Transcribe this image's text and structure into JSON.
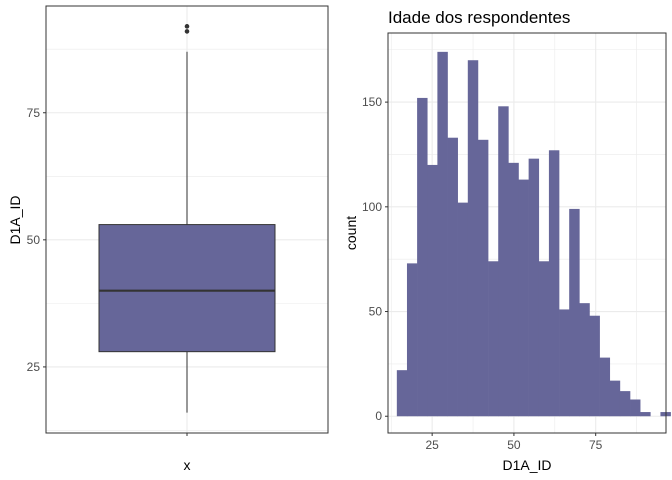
{
  "colors": {
    "fill": "#666699",
    "border": "#333333",
    "grid": "#ebebeb",
    "panel_border": "#333333",
    "outlier": "#333333"
  },
  "chart_data": [
    {
      "type": "boxplot",
      "title": "",
      "xlabel": "x",
      "ylabel": "D1A_ID",
      "x_ticks": [
        ""
      ],
      "y_ticks": [
        25,
        50,
        75
      ],
      "ylim": [
        12,
        96
      ],
      "box": {
        "min": 16,
        "q1": 28,
        "median": 40,
        "q3": 53,
        "max": 87,
        "outliers": [
          91,
          92
        ]
      },
      "grid": true
    },
    {
      "type": "histogram",
      "title": "Idade dos respondentes",
      "xlabel": "D1A_ID",
      "ylabel": "count",
      "x_ticks": [
        25,
        50,
        75
      ],
      "y_ticks": [
        0,
        50,
        100,
        150
      ],
      "xlim": [
        11.5,
        96.5
      ],
      "ylim": [
        -8,
        183
      ],
      "bin_width": 3.1,
      "bins": [
        {
          "x0": 14.2,
          "count": 22
        },
        {
          "x0": 17.3,
          "count": 73
        },
        {
          "x0": 20.4,
          "count": 152
        },
        {
          "x0": 23.5,
          "count": 120
        },
        {
          "x0": 26.6,
          "count": 174
        },
        {
          "x0": 29.7,
          "count": 133
        },
        {
          "x0": 32.8,
          "count": 102
        },
        {
          "x0": 35.9,
          "count": 170
        },
        {
          "x0": 39.0,
          "count": 132
        },
        {
          "x0": 42.1,
          "count": 74
        },
        {
          "x0": 45.2,
          "count": 148
        },
        {
          "x0": 48.3,
          "count": 121
        },
        {
          "x0": 51.4,
          "count": 113
        },
        {
          "x0": 54.5,
          "count": 123
        },
        {
          "x0": 57.6,
          "count": 74
        },
        {
          "x0": 60.7,
          "count": 127
        },
        {
          "x0": 63.8,
          "count": 51
        },
        {
          "x0": 66.9,
          "count": 99
        },
        {
          "x0": 70.0,
          "count": 54
        },
        {
          "x0": 73.1,
          "count": 48
        },
        {
          "x0": 76.2,
          "count": 28
        },
        {
          "x0": 79.3,
          "count": 17
        },
        {
          "x0": 82.4,
          "count": 12
        },
        {
          "x0": 85.5,
          "count": 8
        },
        {
          "x0": 88.6,
          "count": 2
        },
        {
          "x0": 91.7,
          "count": 0
        },
        {
          "x0": 94.8,
          "count": 2
        }
      ],
      "grid": true
    }
  ]
}
